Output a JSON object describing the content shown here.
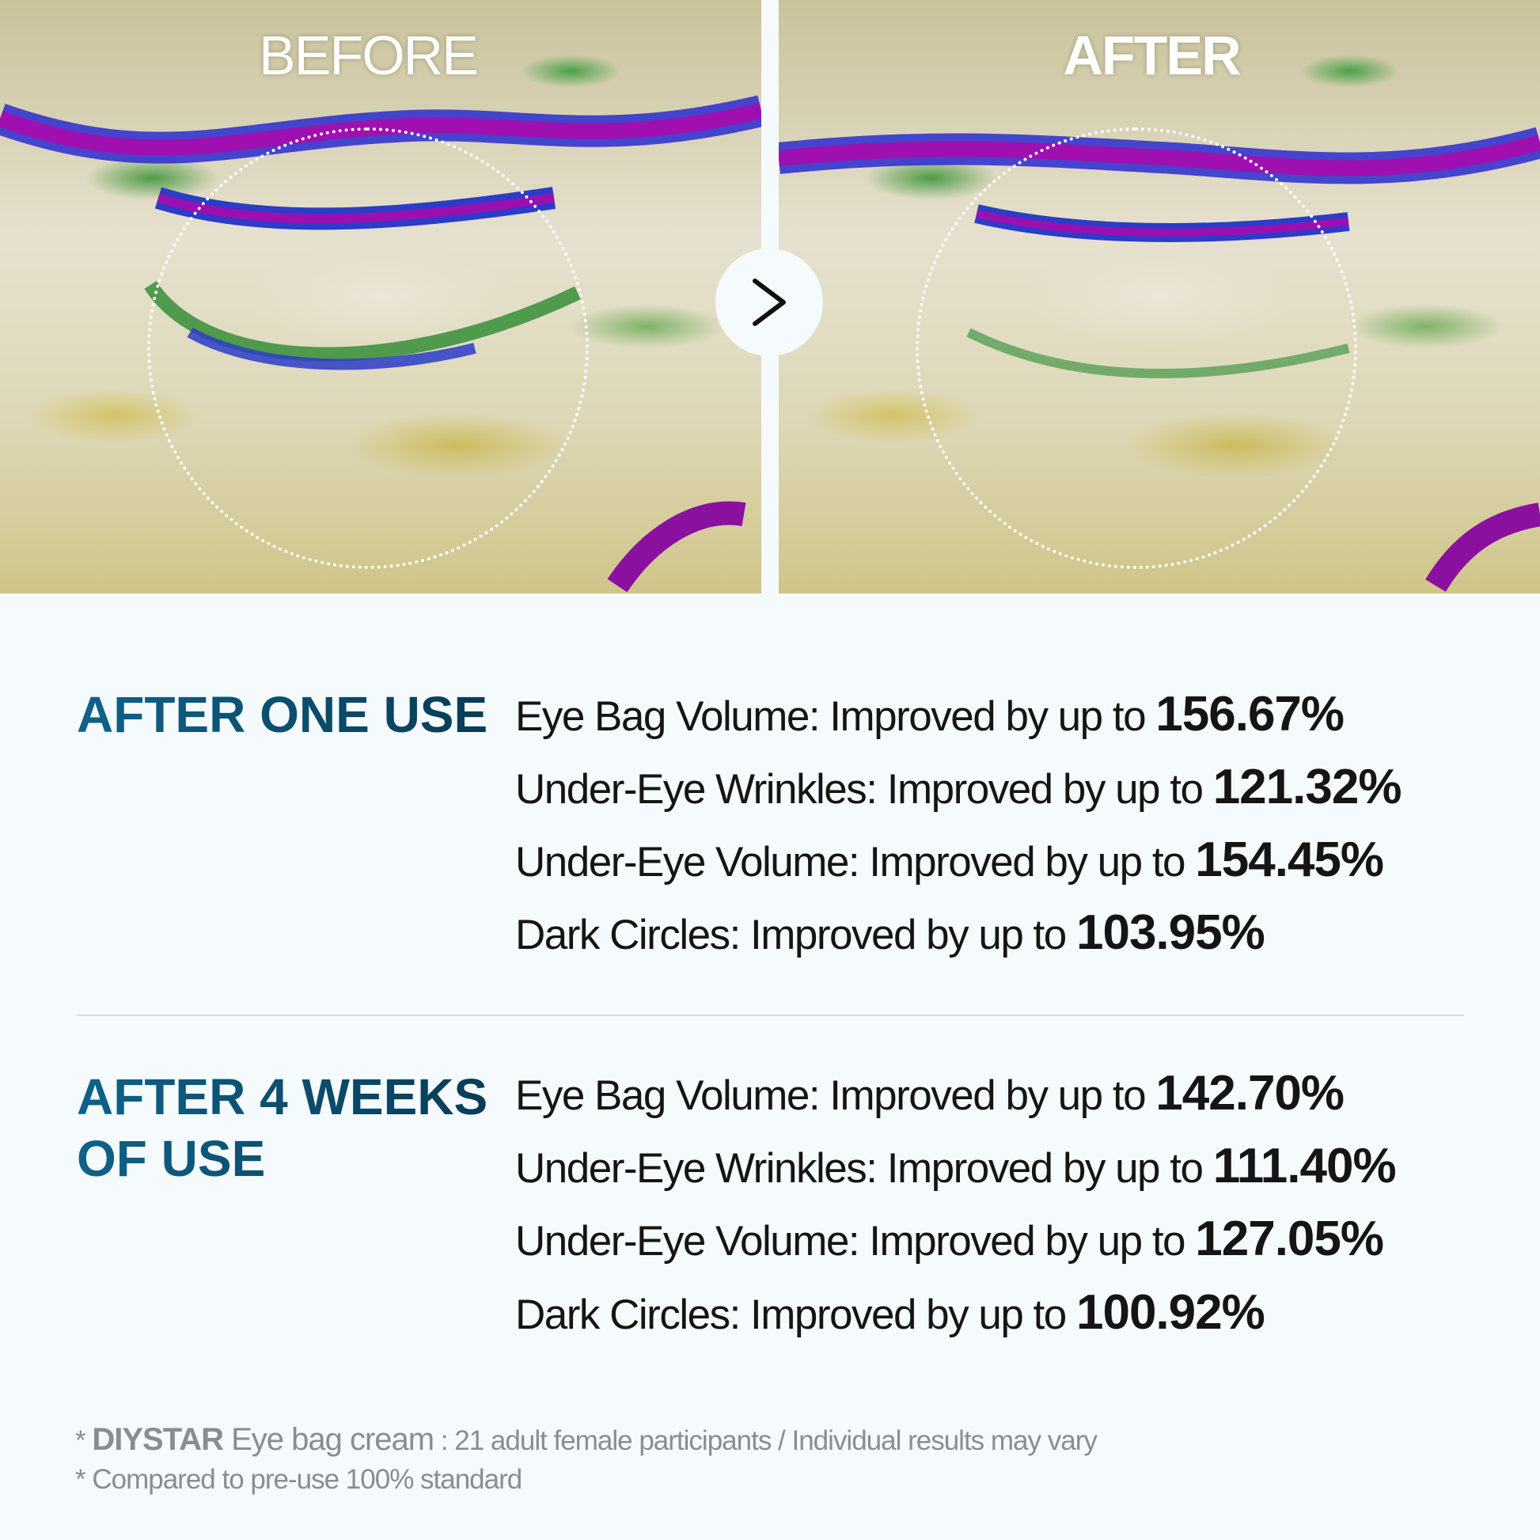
{
  "comparison": {
    "before_label": "BEFORE",
    "after_label": "AFTER",
    "arrow_icon": "chevron-right-icon"
  },
  "sections": [
    {
      "title_lines": [
        "AFTER ONE USE"
      ],
      "stats": [
        {
          "label": "Eye Bag Volume: Improved by up to ",
          "value": "156.67%"
        },
        {
          "label": "Under-Eye Wrinkles: Improved by up to ",
          "value": "121.32%"
        },
        {
          "label": "Under-Eye Volume: Improved by up to ",
          "value": "154.45%"
        },
        {
          "label": "Dark Circles: Improved by up to ",
          "value": "103.95%"
        }
      ]
    },
    {
      "title_lines": [
        "AFTER 4 WEEKS",
        "OF USE"
      ],
      "stats": [
        {
          "label": "Eye Bag Volume: Improved by up to ",
          "value": "142.70%"
        },
        {
          "label": "Under-Eye Wrinkles: Improved by up to ",
          "value": "111.40%"
        },
        {
          "label": "Under-Eye Volume: Improved by up to ",
          "value": "127.05%"
        },
        {
          "label": "Dark Circles: Improved by up to ",
          "value": "100.92%"
        }
      ]
    }
  ],
  "footnotes": {
    "line1_prefix": "* ",
    "brand": "DIYSTAR",
    "product": " Eye bag cream",
    "line1_rest": " : 21 adult female participants / Individual results may vary",
    "line2": "* Compared to pre-use 100% standard"
  },
  "colors": {
    "title": "#0d5579",
    "text": "#151515",
    "note": "#8a8d90",
    "background": "#f5fafd"
  }
}
